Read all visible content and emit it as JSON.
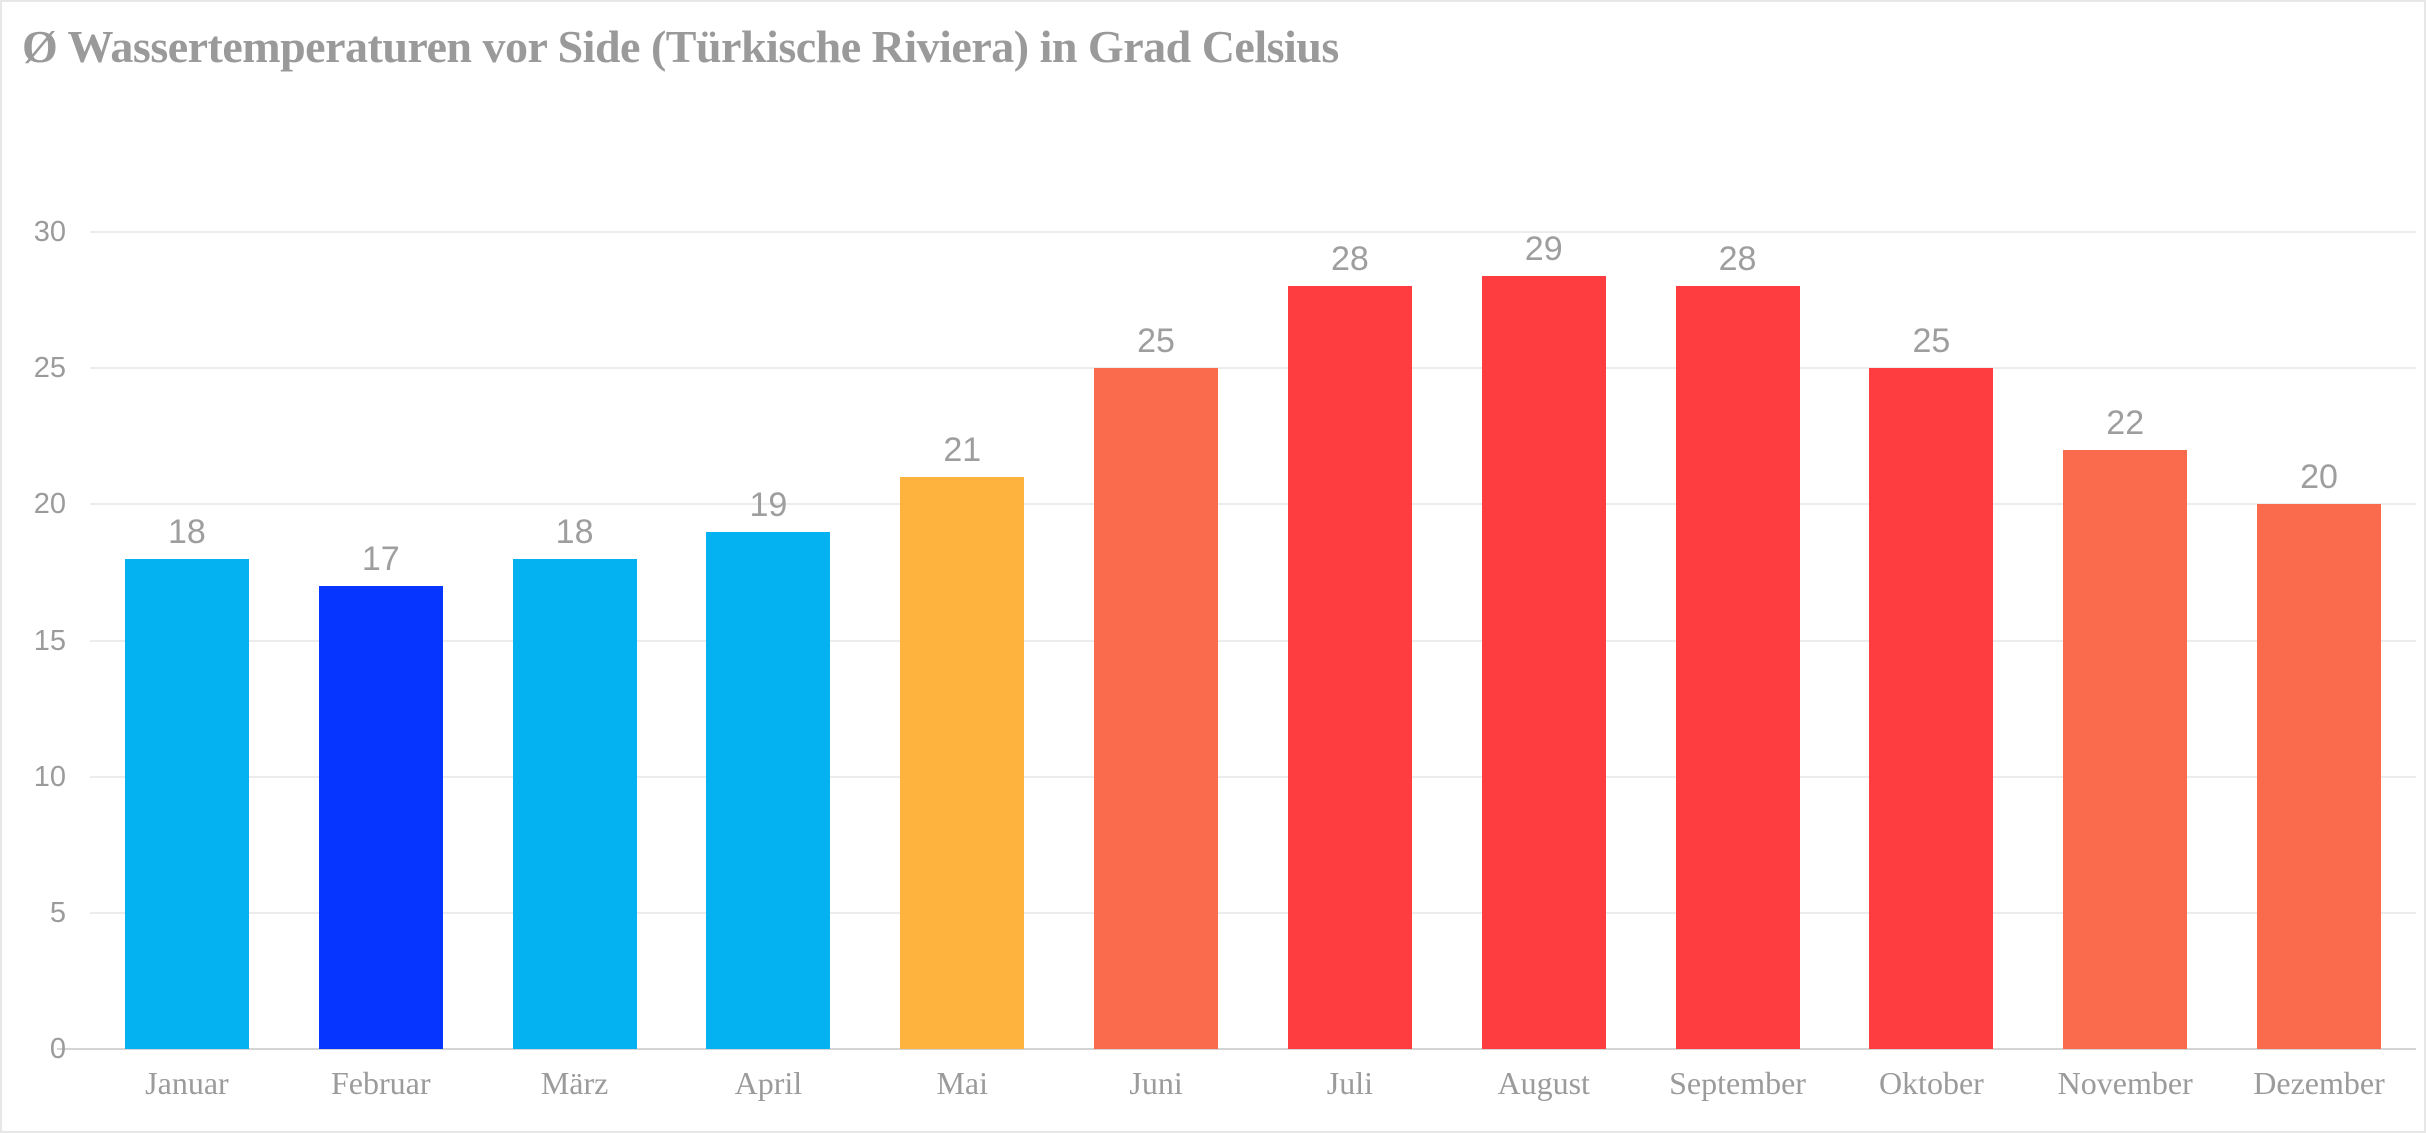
{
  "title": {
    "text": "Ø Wassertemperaturen vor Side (Türkische Riviera) in Grad Celsius"
  },
  "chart_data": {
    "type": "bar",
    "title": "Ø Wassertemperaturen vor Side (Türkische Riviera) in Grad Celsius",
    "categories": [
      "Januar",
      "Februar",
      "März",
      "April",
      "Mai",
      "Juni",
      "Juli",
      "August",
      "September",
      "Oktober",
      "November",
      "Dezember"
    ],
    "values": [
      18,
      17,
      18,
      19,
      21,
      25,
      28,
      29,
      28,
      25,
      22,
      20
    ],
    "bar_colors": [
      "#04b1f1",
      "#0535ff",
      "#04b1f1",
      "#04b1f1",
      "#fdb33d",
      "#fa6a4c",
      "#fd3d3f",
      "#fd3d3f",
      "#fd3d3f",
      "#fd3d3f",
      "#fa6a4c",
      "#fa6a4c"
    ],
    "xlabel": "",
    "ylabel": "",
    "ylim": [
      0,
      30
    ],
    "yticks": [
      0,
      5,
      10,
      15,
      20,
      25,
      30
    ],
    "grid": "horizontal",
    "legend": "none",
    "value_labels": true
  },
  "colors": {
    "background": "#ffffff",
    "frame_border": "#e7e7e7",
    "title_text": "#9a9a9a",
    "axis_text": "#9b9b9b",
    "value_label_text": "#9e9e9e",
    "gridline": "#ececec",
    "zero_axis_line": "#d4d4d4"
  }
}
